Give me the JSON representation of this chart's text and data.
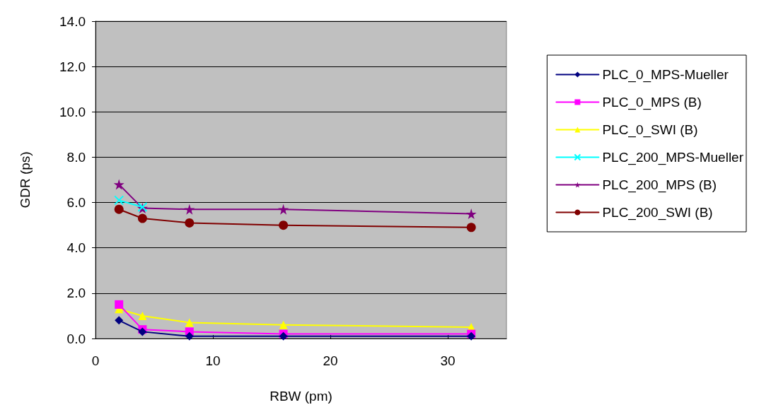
{
  "chart_data": {
    "type": "line",
    "xlabel": "RBW (pm)",
    "ylabel": "GDR (ps)",
    "x": [
      2,
      4,
      8,
      16,
      32
    ],
    "xlim": [
      0,
      35
    ],
    "xticks": [
      0,
      10,
      20,
      30
    ],
    "ylim": [
      0,
      14
    ],
    "yticks": [
      {
        "value": 0,
        "label": "0.0"
      },
      {
        "value": 2,
        "label": "2.0"
      },
      {
        "value": 4,
        "label": "4.0"
      },
      {
        "value": 6,
        "label": "6.0"
      },
      {
        "value": 8,
        "label": "8.0"
      },
      {
        "value": 10,
        "label": "10.0"
      },
      {
        "value": 12,
        "label": "12.0"
      },
      {
        "value": 14,
        "label": "14.0"
      }
    ],
    "grid": "y",
    "legend": "right",
    "line_style": "solid",
    "series": [
      {
        "name": "PLC_0_MPS-Mueller",
        "color": "#000080",
        "marker": "diamond",
        "values": [
          0.8,
          0.3,
          0.1,
          0.1,
          0.1
        ]
      },
      {
        "name": "PLC_0_MPS (B)",
        "color": "#ff00ff",
        "marker": "square",
        "values": [
          1.5,
          0.4,
          0.3,
          0.2,
          0.2
        ]
      },
      {
        "name": "PLC_0_SWI (B)",
        "color": "#ffff00",
        "marker": "triangle",
        "values": [
          1.3,
          1.0,
          0.7,
          0.6,
          0.5
        ]
      },
      {
        "name": "PLC_200_MPS-Mueller",
        "color": "#00ffff",
        "marker": "cross",
        "values": [
          6.1,
          5.8,
          null,
          null,
          null
        ]
      },
      {
        "name": "PLC_200_MPS (B)",
        "color": "#800080",
        "marker": "star",
        "values": [
          6.8,
          5.75,
          5.7,
          5.7,
          5.5
        ]
      },
      {
        "name": "PLC_200_SWI (B)",
        "color": "#800000",
        "marker": "circle",
        "values": [
          5.7,
          5.3,
          5.1,
          5.0,
          4.9
        ]
      }
    ]
  }
}
